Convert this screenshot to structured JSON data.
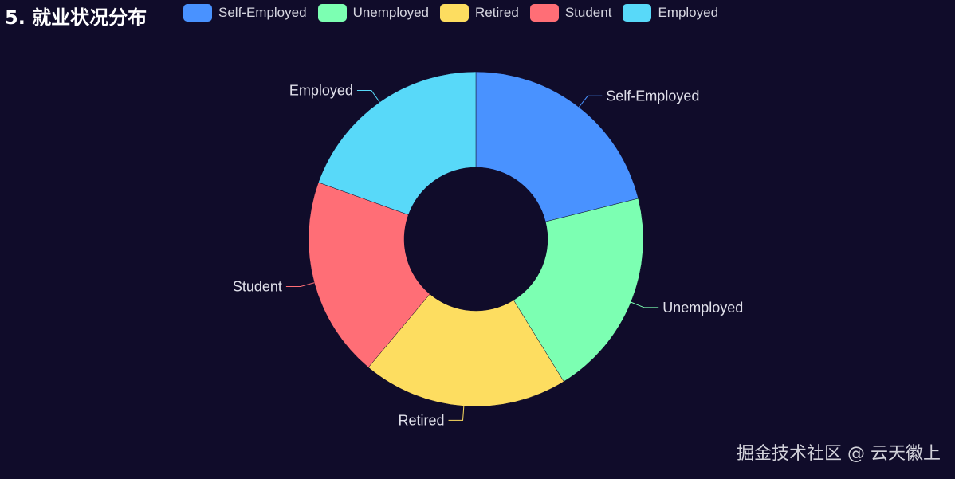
{
  "chart_data": {
    "type": "pie",
    "title": "5. 就业状况分布",
    "donut": true,
    "legend_position": "top",
    "categories": [
      "Self-Employed",
      "Unemployed",
      "Retired",
      "Student",
      "Employed"
    ],
    "values": [
      211,
      201,
      199,
      194,
      195
    ],
    "colors": [
      "#4992ff",
      "#7cffb2",
      "#fddd60",
      "#ff6e76",
      "#58d9f9"
    ]
  },
  "watermark": "掘金技术社区 @ 云天徽上",
  "background": "#100c2a"
}
